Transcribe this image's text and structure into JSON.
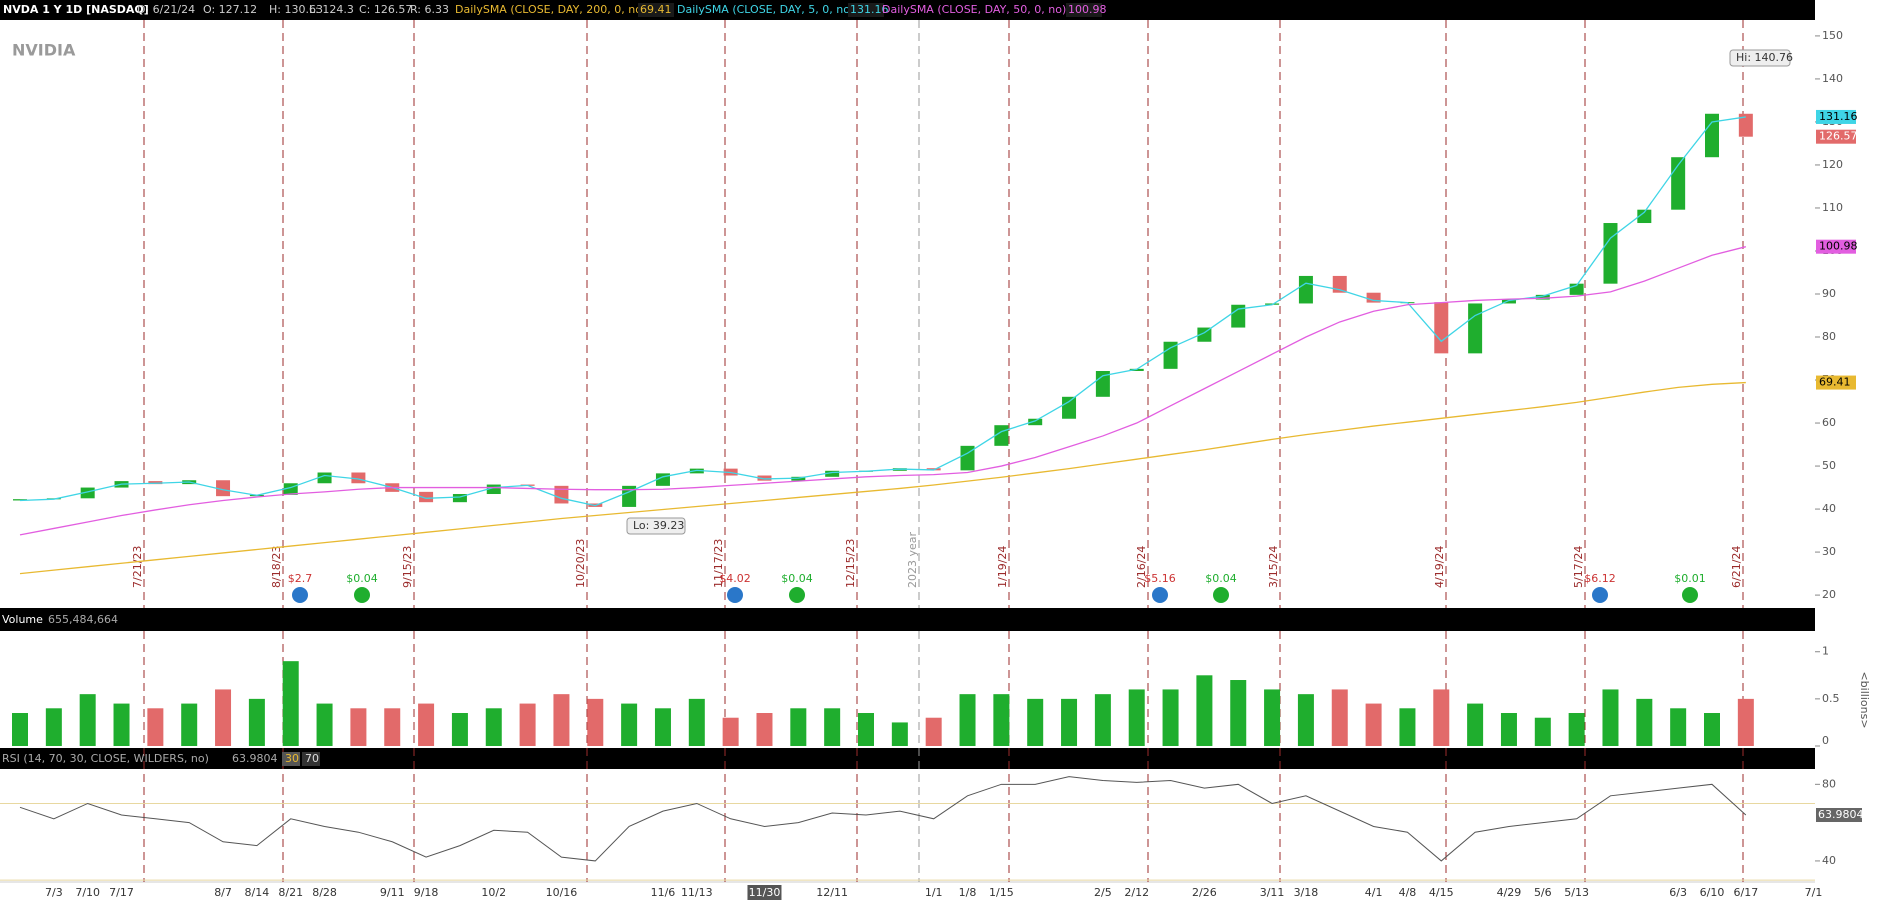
{
  "chart_data": {
    "type": "candlestick",
    "header": {
      "symbol": "NVDA 1 Y 1D [NASDAQ]",
      "date": "D: 6/21/24",
      "open": "O: 127.12",
      "high": "H: 130.63",
      "low": "L: 124.3",
      "close": "C: 126.57",
      "range": "R: 6.33"
    },
    "logo": "NVIDIA",
    "up_color": "#1fae2e",
    "down_color": "#e26a6a",
    "categories": [
      null,
      "7/3",
      "7/10",
      "7/17",
      null,
      null,
      "8/7",
      "8/14",
      "8/21",
      "8/28",
      null,
      "9/11",
      "9/18",
      null,
      "10/2",
      null,
      "10/16",
      null,
      null,
      "11/6",
      "11/13",
      null,
      "11/30",
      null,
      "12/11",
      null,
      null,
      "1/1",
      "1/8",
      "1/15",
      null,
      null,
      "2/5",
      "2/12",
      null,
      "2/26",
      null,
      "3/11",
      "3/18",
      null,
      "4/1",
      "4/8",
      "4/15",
      null,
      "4/29",
      "5/6",
      "5/13",
      null,
      null,
      "6/3",
      "6/10",
      "6/17",
      null,
      "7/1"
    ],
    "highlight_index": 22,
    "open": [
      42,
      42.3,
      42.5,
      45,
      46.5,
      45.8,
      46.7,
      43,
      43.3,
      46,
      48.5,
      46,
      44,
      41.6,
      43.5,
      45.7,
      45.4,
      41.3,
      40.5,
      45.4,
      48.3,
      49.4,
      47.8,
      46.6,
      47.5,
      48.9,
      48.9,
      49.5,
      49,
      54.7,
      59.5,
      61,
      66.1,
      72.1,
      72.6,
      78.9,
      82.2,
      87.5,
      87.8,
      94.2,
      90.3,
      88,
      88.1,
      76.2,
      87.8,
      88.7,
      89.8,
      92.4,
      106.5,
      109.6,
      121.8,
      131.9,
      null,
      null
    ],
    "close": [
      42.3,
      42.5,
      45,
      46.5,
      45.8,
      46.7,
      43,
      43.3,
      46,
      48.5,
      46,
      44,
      41.6,
      43.5,
      45.7,
      45.4,
      41.3,
      40.5,
      45.4,
      48.3,
      49.4,
      47.8,
      46.6,
      47.5,
      48.9,
      48.9,
      49.5,
      49,
      54.7,
      59.5,
      61,
      66.1,
      72.1,
      72.6,
      78.9,
      82.2,
      87.5,
      87.8,
      94.2,
      90.3,
      88,
      88.1,
      76.2,
      87.8,
      88.7,
      89.8,
      92.4,
      106.5,
      109.6,
      121.8,
      131.9,
      126.57,
      null,
      null
    ],
    "last_label": "126.57",
    "ylim": [
      17,
      153.7
    ],
    "yticks": [
      20,
      30,
      40,
      50,
      60,
      70,
      80,
      90,
      100,
      110,
      120,
      130,
      140,
      150
    ],
    "hi_label": "Hi: 140.76",
    "lo_label": "Lo: 39.23",
    "series": [
      {
        "name": "DailySMA (CLOSE, DAY, 200, 0, no)",
        "color": "#e8b931",
        "value_label": "69.41",
        "values": [
          25,
          25.8,
          26.6,
          27.4,
          28.2,
          29,
          29.8,
          30.6,
          31.4,
          32.2,
          33,
          33.8,
          34.6,
          35.4,
          36.2,
          37,
          37.8,
          38.5,
          39.2,
          39.9,
          40.6,
          41.3,
          42,
          42.7,
          43.4,
          44.1,
          44.8,
          45.6,
          46.5,
          47.4,
          48.4,
          49.4,
          50.5,
          51.6,
          52.7,
          53.8,
          55,
          56.2,
          57.3,
          58.3,
          59.3,
          60.2,
          61.1,
          62,
          62.9,
          63.8,
          64.8,
          66,
          67.2,
          68.3,
          69,
          69.41,
          null,
          null
        ]
      },
      {
        "name": "DailySMA (CLOSE, DAY, 5, 0, no)",
        "color": "#3fd5e6",
        "value_label": "131.16",
        "values": [
          42,
          42.3,
          44,
          45.8,
          46,
          46.3,
          44.5,
          43.2,
          45,
          47.8,
          47,
          45,
          42.5,
          42.8,
          45,
          45.5,
          42.5,
          40.8,
          44,
          47.5,
          49,
          48.5,
          47,
          47.2,
          48.5,
          48.8,
          49.3,
          49.1,
          53,
          58,
          60.5,
          65,
          71,
          72.5,
          77.5,
          81,
          86.5,
          87.5,
          92.5,
          91,
          88.5,
          88,
          79,
          85,
          88.5,
          89.5,
          92,
          103,
          109,
          120,
          130,
          131.16,
          null,
          null
        ]
      },
      {
        "name": "DailySMA (CLOSE, DAY, 50, 0, no)",
        "color": "#e25ee0",
        "value_label": "100.98",
        "values": [
          34,
          35.5,
          37,
          38.5,
          39.8,
          41,
          42,
          42.8,
          43.5,
          44,
          44.6,
          45,
          45,
          45,
          45,
          44.8,
          44.6,
          44.5,
          44.5,
          44.6,
          45,
          45.5,
          46,
          46.5,
          47,
          47.5,
          47.8,
          48,
          48.5,
          50,
          52,
          54.5,
          57,
          60,
          64,
          68,
          72,
          76,
          80,
          83.5,
          86,
          87.5,
          88,
          88.5,
          88.8,
          89,
          89.5,
          90.5,
          93,
          96,
          99,
          101,
          null,
          null
        ]
      }
    ],
    "events": [
      "7/21/23",
      "8/18/23",
      "9/15/23",
      "10/20/23",
      "11/17/23",
      "12/15/23",
      "2023 year",
      "1/19/24",
      "2/16/24",
      "3/15/24",
      "4/19/24",
      "5/17/24",
      "6/21/24"
    ],
    "dividends": [
      "$2.7",
      "$0.04",
      "$4.02",
      "$0.04",
      "$5.16",
      "$0.04",
      "$6.12",
      "$0.01"
    ],
    "volume": {
      "title": "Volume",
      "value_label": "655,484,664",
      "unit_label": "<billions>",
      "ylim": [
        0,
        1.22
      ],
      "yticks": [
        0,
        0.5,
        1
      ],
      "values": [
        0.35,
        0.4,
        0.55,
        0.45,
        0.4,
        0.45,
        0.6,
        0.5,
        0.9,
        0.45,
        0.4,
        0.4,
        0.45,
        0.35,
        0.4,
        0.45,
        0.55,
        0.5,
        0.45,
        0.4,
        0.5,
        0.3,
        0.35,
        0.4,
        0.4,
        0.35,
        0.25,
        0.3,
        0.55,
        0.55,
        0.5,
        0.5,
        0.55,
        0.6,
        0.6,
        0.75,
        0.7,
        0.6,
        0.55,
        0.6,
        0.45,
        0.4,
        0.6,
        0.45,
        0.35,
        0.3,
        0.35,
        0.6,
        0.5,
        0.4,
        0.35,
        0.5,
        null,
        null
      ]
    },
    "rsi": {
      "title": "RSI (14, 70, 30, CLOSE, WILDERS, no)",
      "value_label": "63.9804",
      "color": "#555555",
      "levels": [
        {
          "value": 30,
          "label": "30"
        },
        {
          "value": 70,
          "label": "70"
        }
      ],
      "ylim": [
        29,
        88
      ],
      "yticks": [
        40,
        80
      ],
      "values": [
        68,
        62,
        70,
        64,
        62,
        60,
        50,
        48,
        62,
        58,
        55,
        50,
        42,
        48,
        56,
        55,
        42,
        40,
        58,
        66,
        70,
        62,
        58,
        60,
        65,
        64,
        66,
        62,
        74,
        80,
        80,
        84,
        82,
        81,
        82,
        78,
        80,
        70,
        74,
        66,
        58,
        55,
        40,
        55,
        58,
        60,
        62,
        74,
        76,
        78,
        80,
        63.98,
        null,
        null
      ]
    }
  }
}
